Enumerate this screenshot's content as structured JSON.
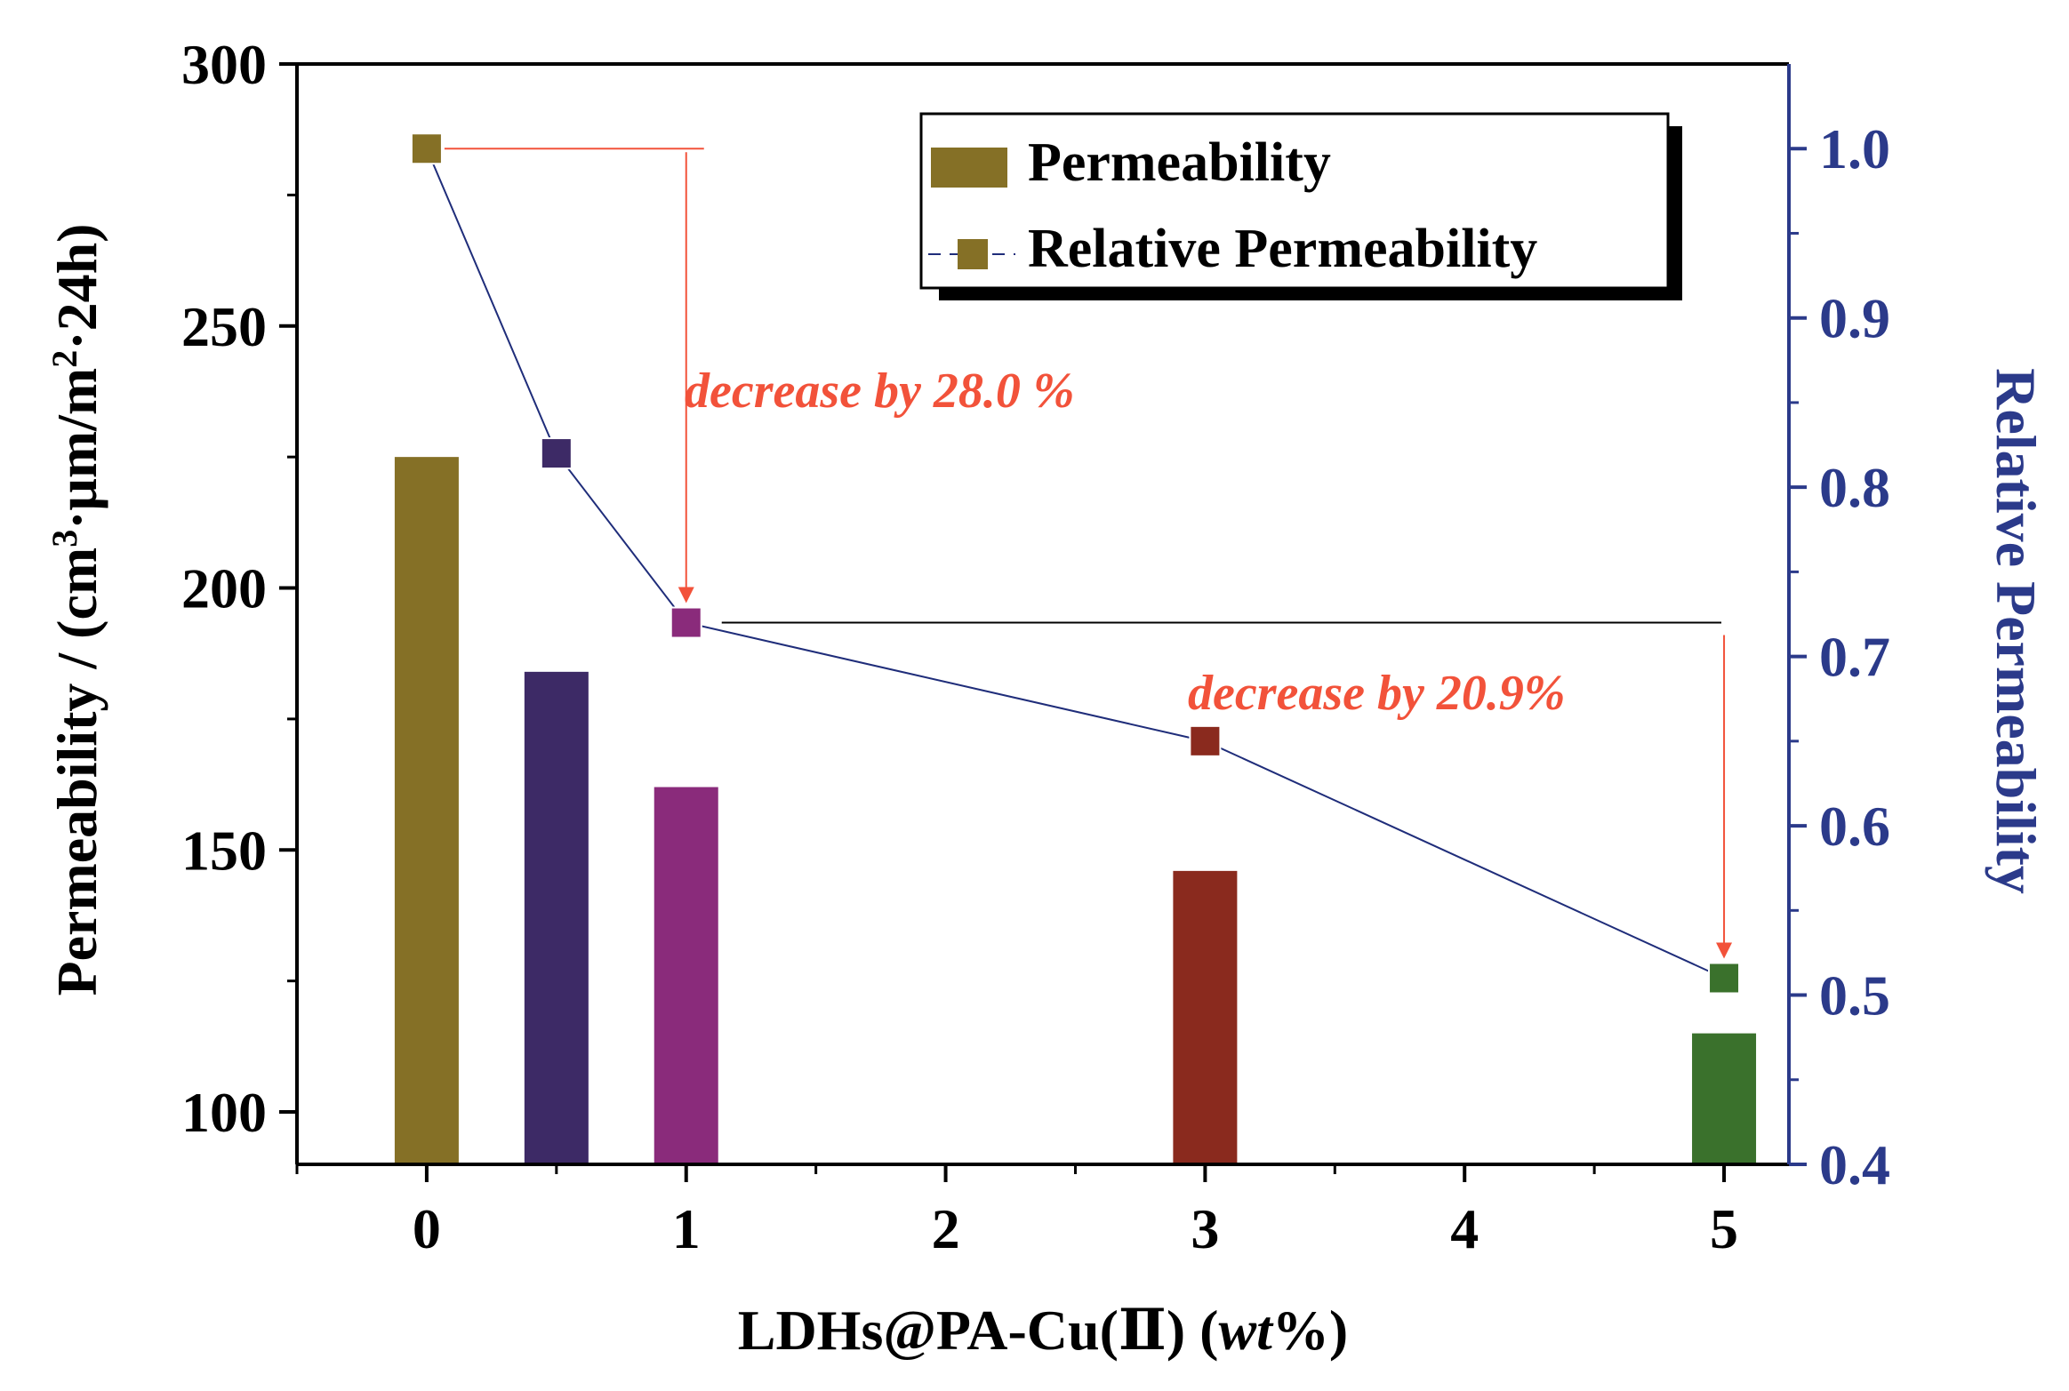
{
  "chart_data": {
    "type": "bar",
    "x": [
      0,
      0.5,
      1,
      3,
      5
    ],
    "series": [
      {
        "name": "Permeability",
        "axis": "left",
        "kind": "bar",
        "values": [
          225,
          184,
          162,
          146,
          115
        ]
      },
      {
        "name": "Relative Permeability",
        "axis": "right",
        "kind": "line",
        "values": [
          1.0,
          0.82,
          0.72,
          0.65,
          0.51
        ]
      }
    ],
    "bar_colors": [
      "#857026",
      "#3d2a66",
      "#8a2b7b",
      "#8a2a1e",
      "#3a712c"
    ],
    "line_color": "#1f2d7a",
    "annotation_color": "#f2523a",
    "right_axis_color": "#2b3a8a",
    "xlabel_parts": {
      "main": "LDHs@PA-Cu(Ⅱ) (",
      "italic": "wt",
      "tail": "%)"
    },
    "ylabel_left_parts": {
      "a": "Permeability / (cm",
      "sup1": "3",
      "b": "·μm/m",
      "sup2": "2",
      "c": "·24h)"
    },
    "ylabel_right": "Relative Permeability",
    "xlim": [
      -0.5,
      5.25
    ],
    "ylim_left": [
      90,
      300
    ],
    "ylim_right": [
      0.4,
      1.05
    ],
    "xticks": [
      0,
      1,
      2,
      3,
      4,
      5
    ],
    "xtick_labels": [
      "0",
      "1",
      "2",
      "3",
      "4",
      "5"
    ],
    "yticks_left": [
      100,
      150,
      200,
      250,
      300
    ],
    "ytick_labels_left": [
      "100",
      "150",
      "200",
      "250",
      "300"
    ],
    "yticks_right": [
      0.4,
      0.5,
      0.6,
      0.7,
      0.8,
      0.9,
      1.0
    ],
    "ytick_labels_right": [
      "0.4",
      "0.5",
      "0.6",
      "0.7",
      "0.8",
      "0.9",
      "1.0"
    ],
    "legend": {
      "position": "top-right",
      "entries": [
        "Permeability",
        "Relative Permeability"
      ]
    },
    "annotations": [
      {
        "text": "decrease by 28.0 %",
        "from_x": 0,
        "from_y": 1.0,
        "to_x": 1,
        "to_y": 0.72
      },
      {
        "text": "decrease by 20.9%",
        "from_x": 1,
        "from_y": 0.72,
        "to_x": 5,
        "to_y": 0.51
      }
    ]
  }
}
